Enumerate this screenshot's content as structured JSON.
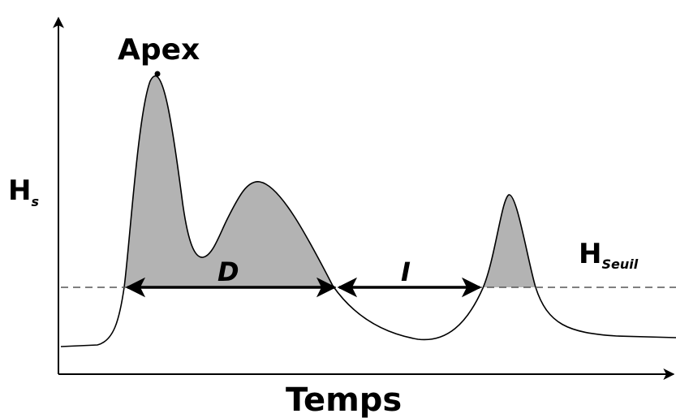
{
  "labels": {
    "apex": "Apex",
    "y_axis_main": "H",
    "y_axis_sub": "s",
    "x_axis": "Temps",
    "threshold_main": "H",
    "threshold_sub": "Seuil",
    "duration": "D",
    "interval": "I"
  },
  "colors": {
    "fill": "#b3b3b3",
    "stroke": "#000000",
    "threshold_line": "#555555"
  }
}
